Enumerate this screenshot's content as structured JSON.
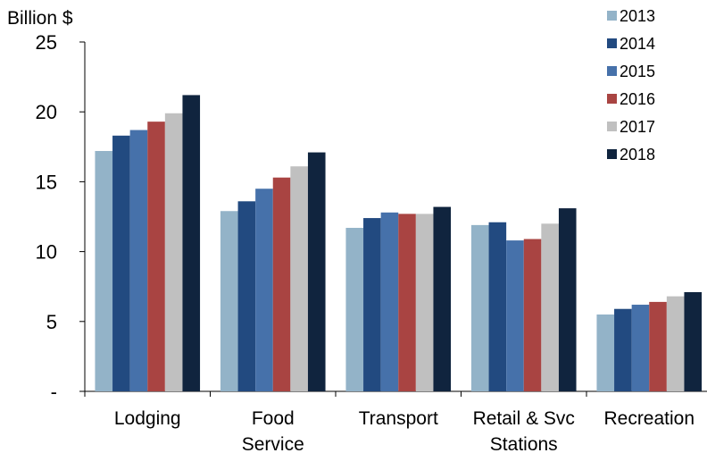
{
  "chart_data": {
    "type": "bar",
    "title": "",
    "ylabel": "Billion $",
    "xlabel": "",
    "ylim": [
      0,
      25
    ],
    "yticks": [
      {
        "value": 0,
        "label": "-"
      },
      {
        "value": 5,
        "label": "5"
      },
      {
        "value": 10,
        "label": "10"
      },
      {
        "value": 15,
        "label": "15"
      },
      {
        "value": 20,
        "label": "20"
      },
      {
        "value": 25,
        "label": "25"
      }
    ],
    "categories": [
      {
        "label": "Lodging",
        "lines": [
          "Lodging"
        ]
      },
      {
        "label": "Food Service",
        "lines": [
          "Food",
          "Service"
        ]
      },
      {
        "label": "Transport",
        "lines": [
          "Transport"
        ]
      },
      {
        "label": "Retail & Svc Stations",
        "lines": [
          "Retail & Svc",
          "Stations"
        ]
      },
      {
        "label": "Recreation",
        "lines": [
          "Recreation"
        ]
      }
    ],
    "series": [
      {
        "name": "2013",
        "color": "#93B3C8",
        "values": [
          17.2,
          12.9,
          11.7,
          11.9,
          5.5
        ]
      },
      {
        "name": "2014",
        "color": "#224A80",
        "values": [
          18.3,
          13.6,
          12.4,
          12.1,
          5.9
        ]
      },
      {
        "name": "2015",
        "color": "#4671AA",
        "values": [
          18.7,
          14.5,
          12.8,
          10.8,
          6.2
        ]
      },
      {
        "name": "2016",
        "color": "#A94442",
        "values": [
          19.3,
          15.3,
          12.7,
          10.9,
          6.4
        ]
      },
      {
        "name": "2017",
        "color": "#C0C0C0",
        "values": [
          19.9,
          16.1,
          12.7,
          12.0,
          6.8
        ]
      },
      {
        "name": "2018",
        "color": "#10243E",
        "values": [
          21.2,
          17.1,
          13.2,
          13.1,
          7.1
        ]
      }
    ],
    "grid": false,
    "legend_position": "top-right"
  }
}
